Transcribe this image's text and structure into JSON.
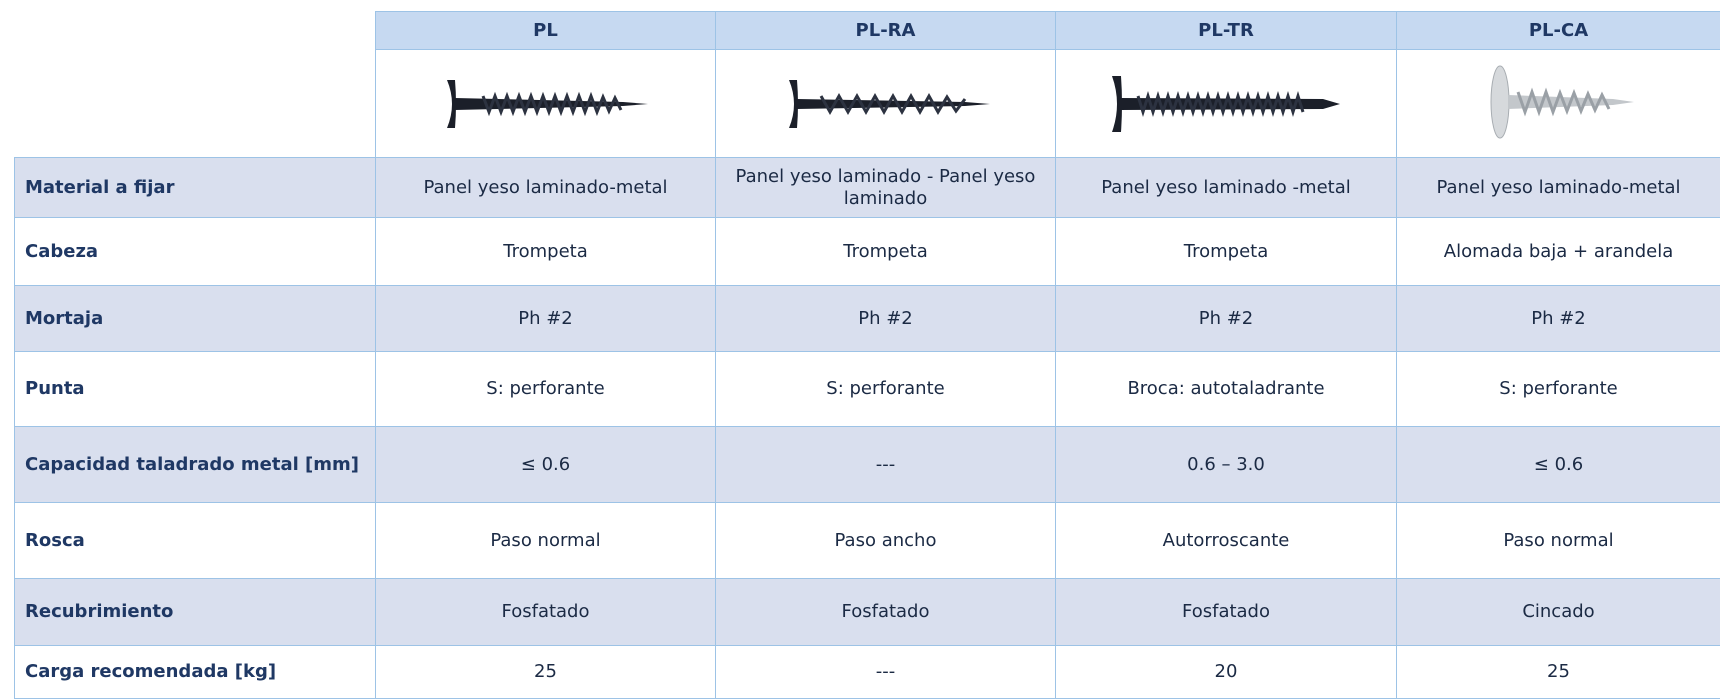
{
  "header": {
    "columns": [
      "PL",
      "PL-RA",
      "PL-TR",
      "PL-CA"
    ]
  },
  "table": {
    "rows": [
      {
        "label": "Material a fijar",
        "values": [
          "Panel yeso laminado-metal",
          "Panel yeso laminado - Panel yeso laminado",
          "Panel yeso laminado -metal",
          "Panel yeso laminado-metal"
        ]
      },
      {
        "label": "Cabeza",
        "values": [
          "Trompeta",
          "Trompeta",
          "Trompeta",
          "Alomada baja + arandela"
        ]
      },
      {
        "label": "Mortaja",
        "values": [
          "Ph #2",
          "Ph #2",
          "Ph #2",
          "Ph #2"
        ]
      },
      {
        "label": "Punta",
        "values": [
          "S: perforante",
          "S: perforante",
          "Broca: autotaladrante",
          "S: perforante"
        ]
      },
      {
        "label": "Capacidad taladrado metal [mm]",
        "values": [
          "≤ 0.6",
          "---",
          "0.6 – 3.0",
          "≤ 0.6"
        ]
      },
      {
        "label": "Rosca",
        "values": [
          "Paso normal",
          "Paso ancho",
          "Autorroscante",
          "Paso normal"
        ]
      },
      {
        "label": "Recubrimiento",
        "values": [
          "Fosfatado",
          "Fosfatado",
          "Fosfatado",
          "Cincado"
        ]
      },
      {
        "label": "Carga recomendada [kg]",
        "values": [
          "25",
          "---",
          "20",
          "25"
        ]
      }
    ]
  }
}
